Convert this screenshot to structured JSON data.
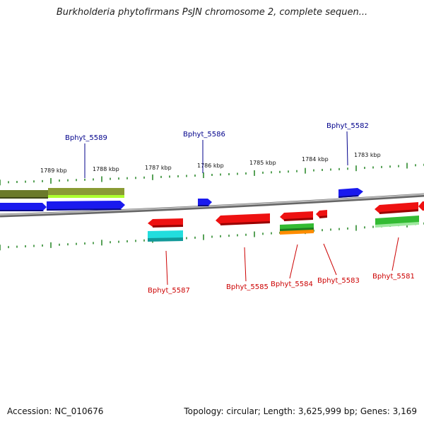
{
  "title": "Burkholderia phytofirmans PsJN chromosome 2, complete sequen...",
  "footer": {
    "accession": "Accession: NC_010676",
    "summary": "Topology: circular; Length: 3,625,999 bp; Genes: 3,169"
  },
  "colors": {
    "backbone": "#8a8a8a",
    "tick": "#2e8b2e",
    "forward_label": "#00008b",
    "reverse_label": "#cc0000",
    "blue": "#1a1aee",
    "red": "#ee1111",
    "olive": "#6b7a2a",
    "light_green": "#9acd32",
    "green": "#33bb33",
    "orange": "#ff8c00",
    "cyan": "#22dddd"
  },
  "scale_ticks": [
    "1789 kbp",
    "1788 kbp",
    "1787 kbp",
    "1786 kbp",
    "1785 kbp",
    "1784 kbp",
    "1783 kbp"
  ],
  "forward_genes": [
    "Bphyt_5589",
    "Bphyt_5586",
    "Bphyt_5582"
  ],
  "reverse_genes": [
    "Bphyt_5587",
    "Bphyt_5585",
    "Bphyt_5584",
    "Bphyt_5583",
    "Bphyt_5581"
  ]
}
